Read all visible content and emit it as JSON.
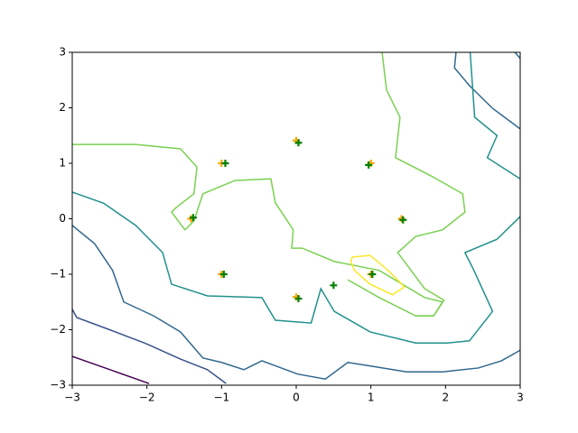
{
  "chart_data": {
    "type": "contour",
    "xlim": [
      -3,
      3
    ],
    "ylim": [
      -3,
      3
    ],
    "xticks": [
      {
        "value": -3,
        "label": "−3"
      },
      {
        "value": -2,
        "label": "−2"
      },
      {
        "value": -1,
        "label": "−1"
      },
      0,
      1,
      2,
      3
    ],
    "yticks": [
      {
        "value": -3,
        "label": "−3"
      },
      {
        "value": -2,
        "label": "−2"
      },
      {
        "value": -1,
        "label": "−1"
      },
      0,
      1,
      2,
      3
    ],
    "contours": [
      {
        "color": "#440154",
        "x": [
          -3,
          -1.97
        ],
        "y": [
          -2.48,
          -2.97
        ]
      },
      {
        "color": "#3b528b",
        "x": [
          -3,
          -2.94,
          -2.52,
          -2.03,
          -1.55,
          -1.19,
          -0.94
        ],
        "y": [
          -1.63,
          -1.78,
          -1.99,
          -2.24,
          -2.53,
          -2.72,
          -2.97
        ]
      },
      {
        "color": "#31688e",
        "x": [
          -3,
          -2.7,
          -2.46,
          -2.31,
          -1.91,
          -1.55,
          -1.25,
          -1.0,
          -0.7,
          -0.46,
          0.02,
          0.39,
          0.69,
          0.93,
          1.48,
          1.96,
          2.44,
          2.75,
          3
        ],
        "y": [
          -0.12,
          -0.45,
          -0.93,
          -1.5,
          -1.75,
          -2.04,
          -2.51,
          -2.59,
          -2.72,
          -2.56,
          -2.8,
          -2.89,
          -2.59,
          -2.64,
          -2.76,
          -2.76,
          -2.69,
          -2.56,
          -2.37
        ]
      },
      {
        "color": "#31688e",
        "x": [
          2.14,
          2.12,
          2.32,
          2.63,
          3
        ],
        "y": [
          3,
          2.72,
          2.4,
          1.99,
          1.62
        ]
      },
      {
        "color": "#31688e",
        "x": [
          2.93,
          3
        ],
        "y": [
          3,
          2.89
        ]
      },
      {
        "color": "#21918c",
        "x": [
          -3,
          -2.58,
          -2.15,
          -1.79,
          -1.67,
          -1.19,
          -0.46,
          -0.28,
          0.2,
          0.33,
          0.51,
          0.99,
          1.6,
          2.02,
          2.32,
          2.63,
          2.38,
          2.26,
          2.69,
          3
        ],
        "y": [
          0.48,
          0.28,
          -0.12,
          -0.61,
          -1.18,
          -1.39,
          -1.42,
          -1.83,
          -1.88,
          -1.26,
          -1.67,
          -2.04,
          -2.24,
          -2.24,
          -2.2,
          -1.67,
          -0.93,
          -0.61,
          -0.37,
          0.04
        ]
      },
      {
        "color": "#21918c",
        "x": [
          2.33,
          2.39,
          2.69,
          2.56,
          3
        ],
        "y": [
          3,
          1.83,
          1.5,
          1.1,
          0.72
        ]
      },
      {
        "color": "#7ad151",
        "x": [
          -3,
          -2.15,
          -1.55,
          -1.33,
          -1.37,
          -1.61,
          -1.67,
          -1.49,
          -1.37,
          -1.25,
          -0.82,
          -0.34,
          -0.28,
          -0.04,
          -0.06,
          0.08,
          0.51,
          1.11,
          1.72,
          1.96,
          1.84,
          1.6,
          1.11,
          0.69
        ],
        "y": [
          1.34,
          1.34,
          1.26,
          0.93,
          0.45,
          0.2,
          0.12,
          -0.2,
          -0.04,
          0.45,
          0.69,
          0.72,
          0.29,
          -0.2,
          -0.53,
          -0.53,
          -0.77,
          -0.93,
          -1.42,
          -1.5,
          -1.75,
          -1.75,
          -1.42,
          -1.1
        ]
      },
      {
        "color": "#7ad151",
        "x": [
          1.15,
          1.21,
          1.39,
          1.33,
          1.81,
          2.23,
          2.26,
          1.96,
          1.6,
          1.36,
          1.72,
          1.98,
          1.84,
          1.6
        ],
        "y": [
          3,
          2.32,
          1.83,
          1.1,
          0.77,
          0.45,
          0.12,
          -0.2,
          -0.32,
          -0.61,
          -1.26,
          -1.47,
          -1.75,
          -1.75
        ]
      },
      {
        "color": "#fde725",
        "x": [
          0.75,
          0.99,
          1.23,
          1.45,
          1.29,
          0.99,
          0.78,
          0.73,
          0.75
        ],
        "y": [
          -0.69,
          -0.66,
          -0.93,
          -1.23,
          -1.37,
          -1.18,
          -0.93,
          -0.77,
          -0.69
        ]
      }
    ],
    "series": [
      {
        "color": "#ffa500",
        "x": [
          -1.0,
          0.0,
          1.0,
          1.41,
          1.0,
          0.0,
          -1.0,
          -1.41
        ],
        "y": [
          1.0,
          1.41,
          1.0,
          0.0,
          -1.0,
          -1.41,
          -1.0,
          0.0
        ]
      },
      {
        "color": "#008000",
        "x": [
          -0.95,
          0.03,
          0.97,
          1.43,
          1.02,
          0.03,
          -0.97,
          -1.38,
          0.5
        ],
        "y": [
          1.0,
          1.37,
          0.97,
          -0.02,
          -1.0,
          -1.44,
          -1.0,
          0.02,
          -1.2
        ]
      }
    ]
  }
}
